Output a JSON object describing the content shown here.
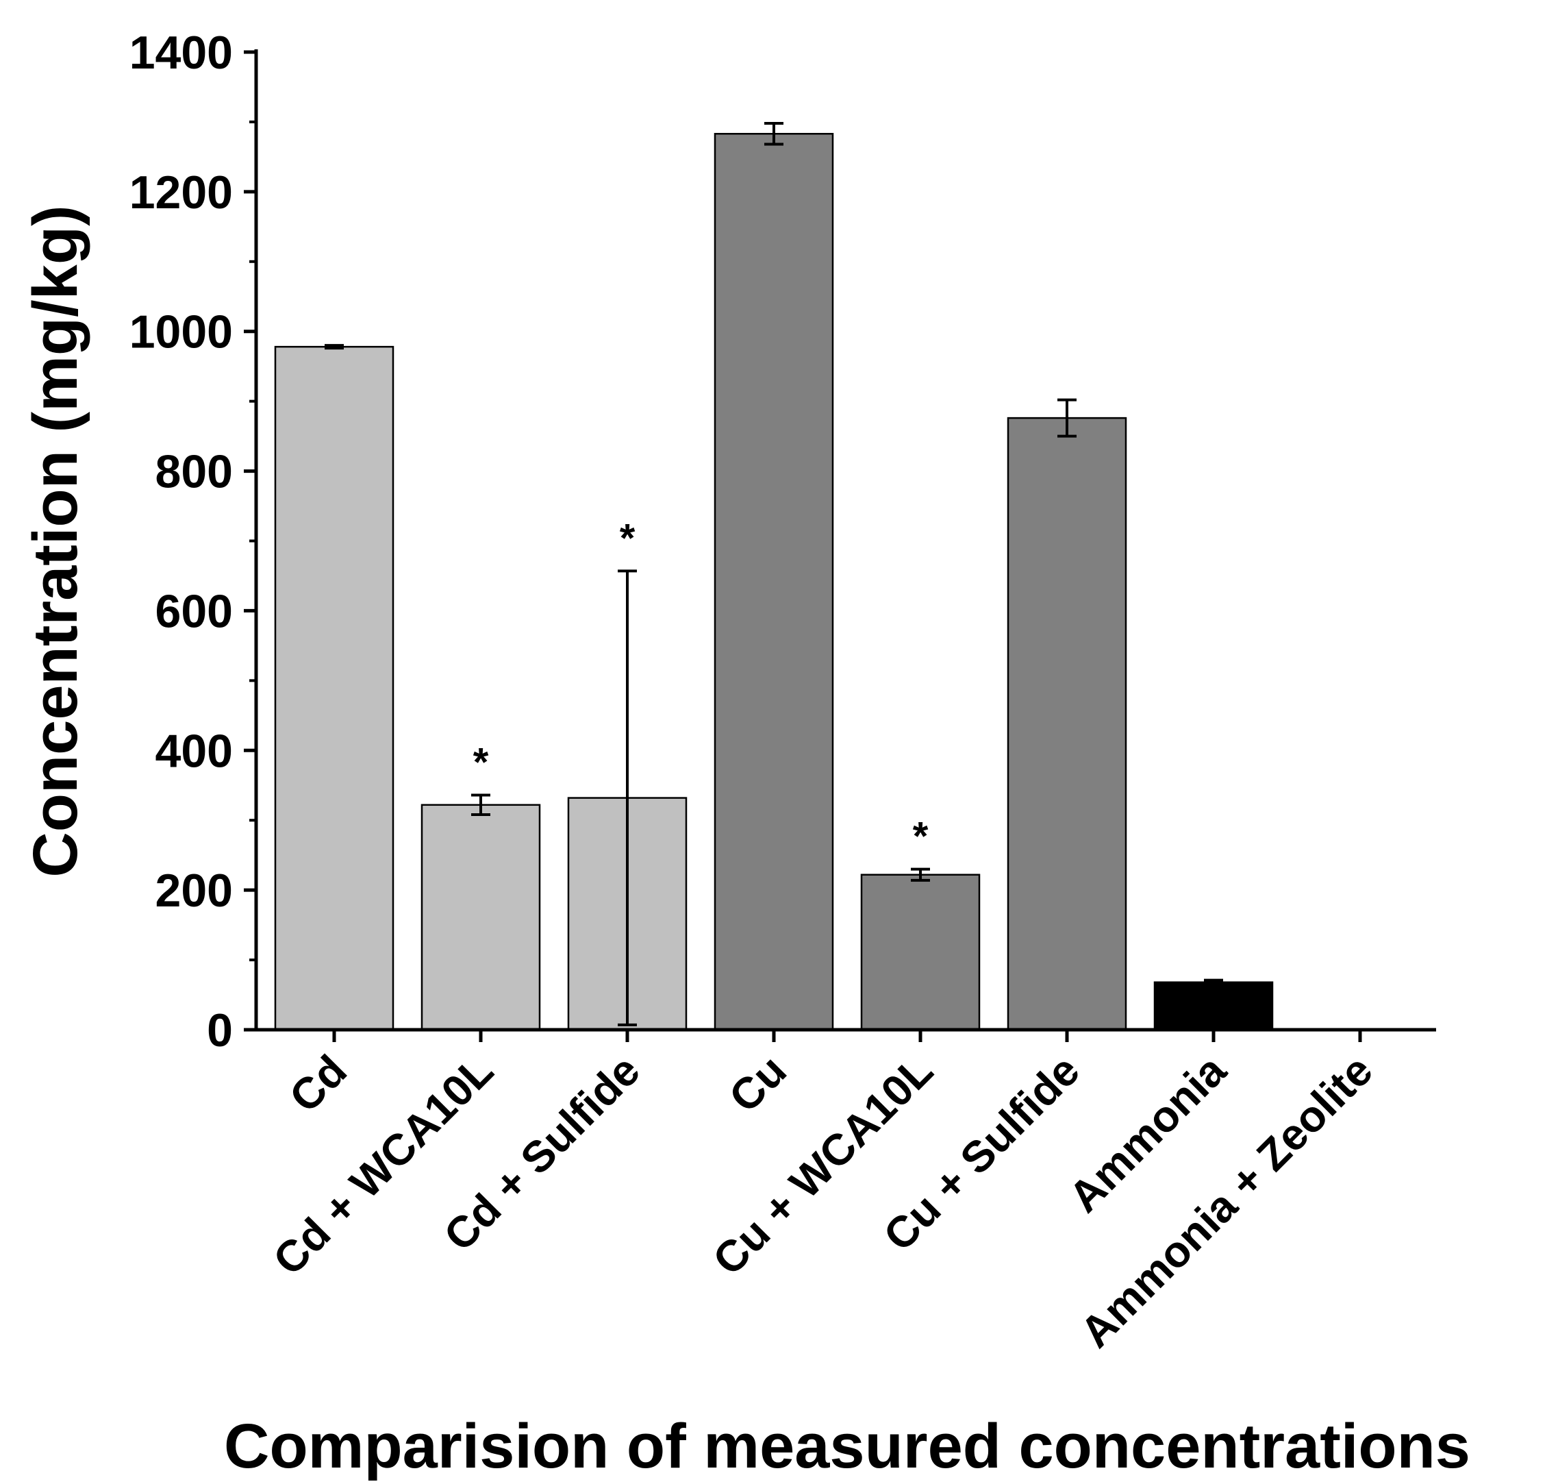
{
  "chart_data": {
    "type": "bar",
    "title": "",
    "xlabel": "Comparision of measured concentrations",
    "ylabel": "Concentration (mg/kg)",
    "ylim": [
      0,
      1400
    ],
    "yticks": [
      0,
      200,
      400,
      600,
      800,
      1000,
      1200,
      1400
    ],
    "ytick_labels": [
      "0",
      "200",
      "400",
      "600",
      "800",
      "1000",
      "1200",
      "1400"
    ],
    "categories": [
      "Cd",
      "Cd + WCA10L",
      "Cd + Sulfide",
      "Cu",
      "Cu + WCA10L",
      "Cu + Sulfide",
      "Ammonia",
      "Ammonia + Zeolite"
    ],
    "values": [
      978,
      322,
      332,
      1283,
      222,
      876,
      68,
      0
    ],
    "errors": [
      2,
      14,
      325,
      15,
      8,
      26,
      3,
      0
    ],
    "significance": [
      "",
      "*",
      "*",
      "",
      "*",
      "",
      "",
      ""
    ],
    "colors": [
      "#c0c0c0",
      "#c0c0c0",
      "#c0c0c0",
      "#808080",
      "#808080",
      "#808080",
      "#000000",
      "#000000"
    ],
    "grid": false
  }
}
